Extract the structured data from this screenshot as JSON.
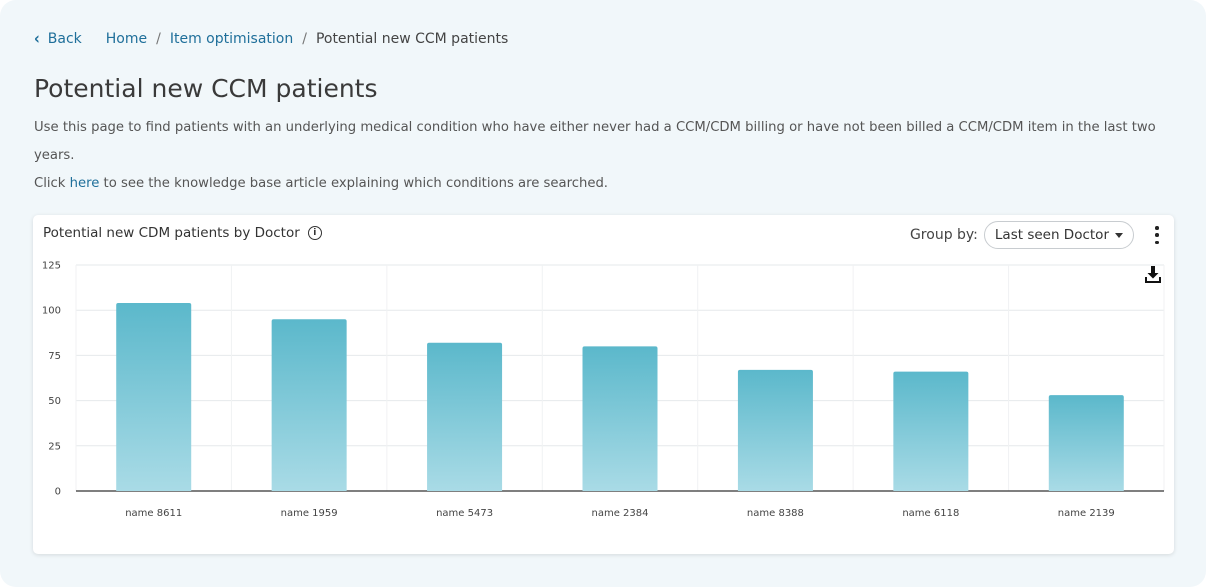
{
  "breadcrumb": {
    "back_label": "Back",
    "items": [
      "Home",
      "Item optimisation"
    ],
    "current": "Potential new CCM patients",
    "separator": "/"
  },
  "page": {
    "title": "Potential new CCM patients",
    "description_line1": "Use this page to find patients with an underlying medical condition who have either never had a CCM/CDM billing or have not been billed a CCM/CDM item in the last two years.",
    "description_click": "Click ",
    "description_link": "here",
    "description_rest": " to see the knowledge base article explaining which conditions are searched."
  },
  "card": {
    "title": "Potential new CDM patients by Doctor",
    "group_by_label": "Group by:",
    "group_by_value": "Last seen Doctor",
    "icons": [
      "info-icon",
      "kebab-menu-icon",
      "download-icon"
    ]
  },
  "colors": {
    "bar_top": "#5bb8cb",
    "bar_bottom": "#a9dbe6",
    "link": "#1f6f9a"
  },
  "chart_data": {
    "type": "bar",
    "title": "Potential new CDM patients by Doctor",
    "categories": [
      "name 8611",
      "name 1959",
      "name 5473",
      "name 2384",
      "name 8388",
      "name 6118",
      "name 2139"
    ],
    "values": [
      104,
      95,
      82,
      80,
      67,
      66,
      53
    ],
    "yticks": [
      0,
      25,
      50,
      75,
      100,
      125
    ],
    "ylim": [
      0,
      125
    ],
    "grid": true,
    "xlabel": "",
    "ylabel": ""
  }
}
